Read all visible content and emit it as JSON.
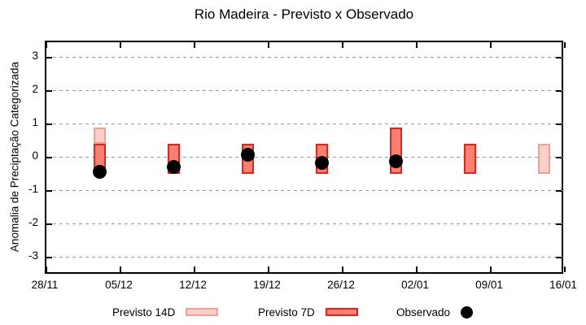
{
  "chart_data": {
    "type": "bar",
    "title": "Rio Madeira - Previsto x Observado",
    "ylabel": "Anomalia de Preciptação Categorizada",
    "ylim": [
      -3.5,
      3.5
    ],
    "y_ticks": [
      3,
      2,
      1,
      0,
      -1,
      -2,
      -3
    ],
    "x_axis": {
      "tick_labels": [
        "28/11",
        "05/12",
        "12/12",
        "19/12",
        "26/12",
        "02/01",
        "09/01",
        "16/01"
      ],
      "tick_days": [
        0,
        7,
        14,
        21,
        28,
        35,
        42,
        49
      ],
      "total_days": 49
    },
    "grid": true,
    "bars": [
      {
        "date": "03/12",
        "day": 5,
        "previsto_14d": [
          0.45,
          0.95
        ],
        "previsto_7d": [
          -0.45,
          0.45
        ],
        "observado": -0.4
      },
      {
        "date": "10/12",
        "day": 12,
        "previsto_14d": null,
        "previsto_7d": [
          -0.45,
          0.45
        ],
        "observado": -0.25
      },
      {
        "date": "17/12",
        "day": 19,
        "previsto_14d": null,
        "previsto_7d": [
          -0.45,
          0.45
        ],
        "observado": 0.12
      },
      {
        "date": "24/12",
        "day": 26,
        "previsto_14d": null,
        "previsto_7d": [
          -0.45,
          0.45
        ],
        "observado": -0.12
      },
      {
        "date": "31/12",
        "day": 33,
        "previsto_14d": null,
        "previsto_7d": [
          -0.45,
          0.95
        ],
        "observado": -0.07
      },
      {
        "date": "07/01",
        "day": 40,
        "previsto_14d": null,
        "previsto_7d": [
          -0.45,
          0.45
        ],
        "observado": null
      },
      {
        "date": "14/01",
        "day": 47,
        "previsto_14d": [
          -0.45,
          0.45
        ],
        "previsto_7d": null,
        "observado": null
      }
    ],
    "legend": [
      {
        "label": "Previsto 14D",
        "type": "box",
        "series": "previsto_14d"
      },
      {
        "label": "Previsto 7D",
        "type": "box",
        "series": "previsto_7d"
      },
      {
        "label": "Observado",
        "type": "dot",
        "series": "observado"
      }
    ],
    "legend_position": "bottom",
    "colors": {
      "previsto_14d_fill": "#fbd0ca",
      "previsto_14d_border": "#f2a094",
      "previsto_7d_fill": "#fa8072",
      "previsto_7d_border": "#e42320",
      "observado": "#000000",
      "grid": "#999999",
      "axis": "#000000"
    }
  }
}
